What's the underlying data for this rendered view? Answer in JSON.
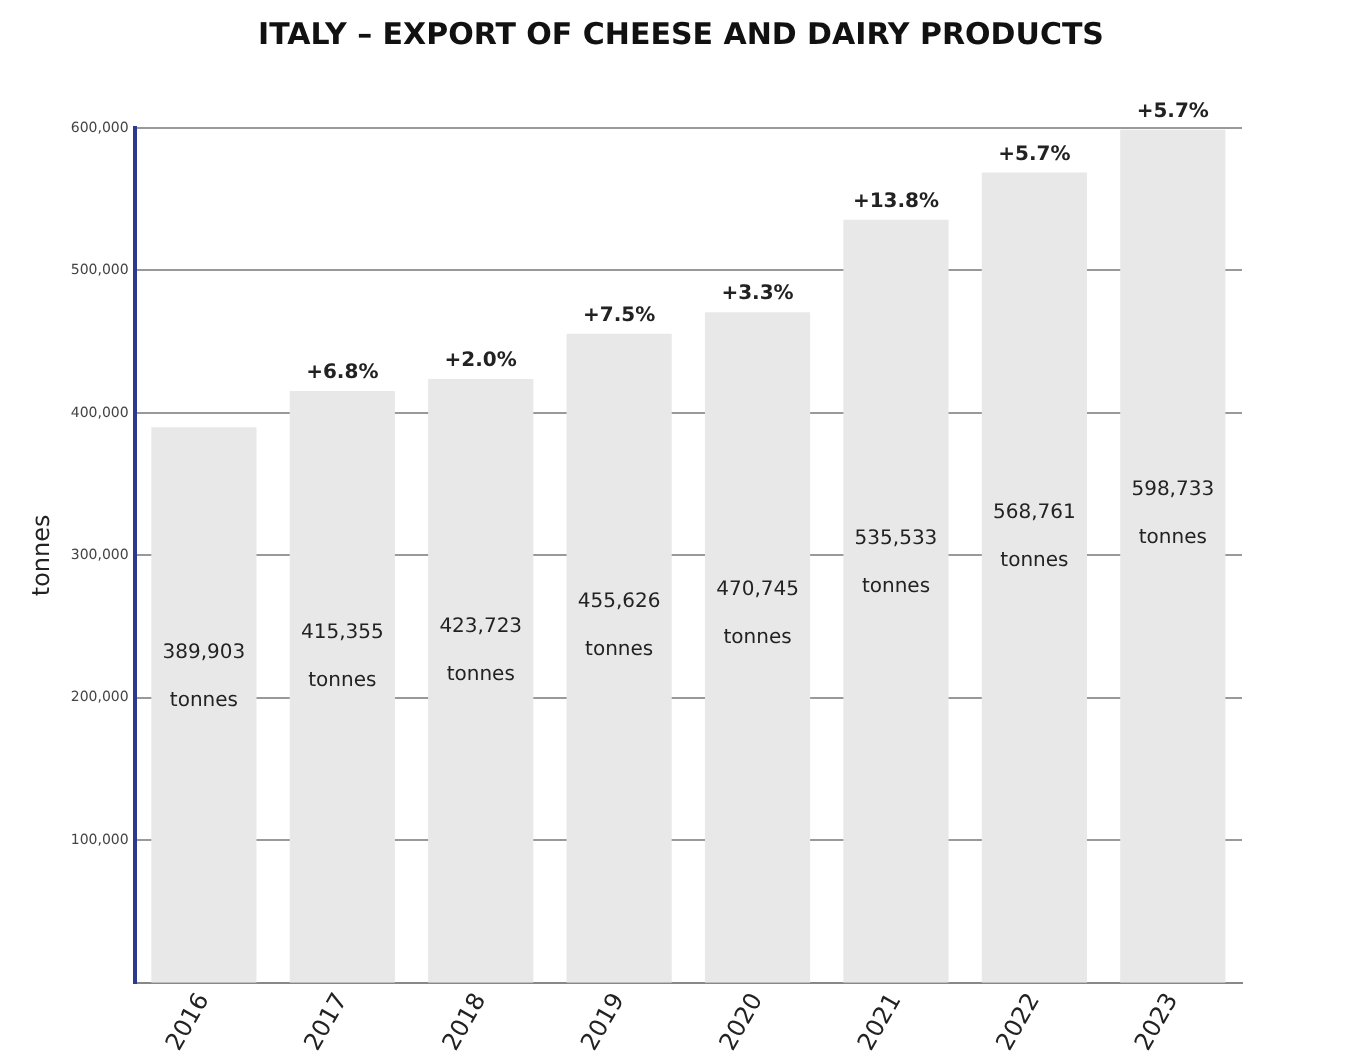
{
  "chart_data": {
    "type": "bar",
    "title": "ITALY – EXPORT OF CHEESE AND DAIRY PRODUCTS",
    "ylabel": "tonnes",
    "categories": [
      "2016",
      "2017",
      "2018",
      "2019",
      "2020",
      "2021",
      "2022",
      "2023"
    ],
    "values": [
      389903,
      415355,
      423723,
      455626,
      470745,
      535533,
      568761,
      598733
    ],
    "value_labels": [
      "389,903 tonnes",
      "415,355 tonnes",
      "423,723 tonnes",
      "455,626 tonnes",
      "470,745 tonnes",
      "535,533 tonnes",
      "568,761 tonnes",
      "598,733 tonnes"
    ],
    "color": "#e8e8e8",
    "ylim": [
      0,
      600000
    ],
    "yticks": [
      {
        "value": 100000,
        "label": "100,000"
      },
      {
        "value": 200000,
        "label": "200,000"
      },
      {
        "value": 300000,
        "label": "300,000"
      },
      {
        "value": 400000,
        "label": "400,000"
      },
      {
        "value": 500000,
        "label": "500,000"
      },
      {
        "value": 600000,
        "label": "600,000"
      }
    ],
    "grid": "y",
    "legend": false,
    "annotations": [
      {
        "text": "+6.8%",
        "x": "2017",
        "y": 415355
      },
      {
        "text": "+2.0%",
        "x": "2018",
        "y": 423723
      },
      {
        "text": "+7.5%",
        "x": "2019",
        "y": 455626
      },
      {
        "text": "+3.3%",
        "x": "2020",
        "y": 470745
      },
      {
        "text": "+13.8%",
        "x": "2021",
        "y": 535533
      },
      {
        "text": "+5.7%",
        "x": "2022",
        "y": 568761
      },
      {
        "text": "+5.7%",
        "x": "2023",
        "y": 598733
      }
    ]
  }
}
